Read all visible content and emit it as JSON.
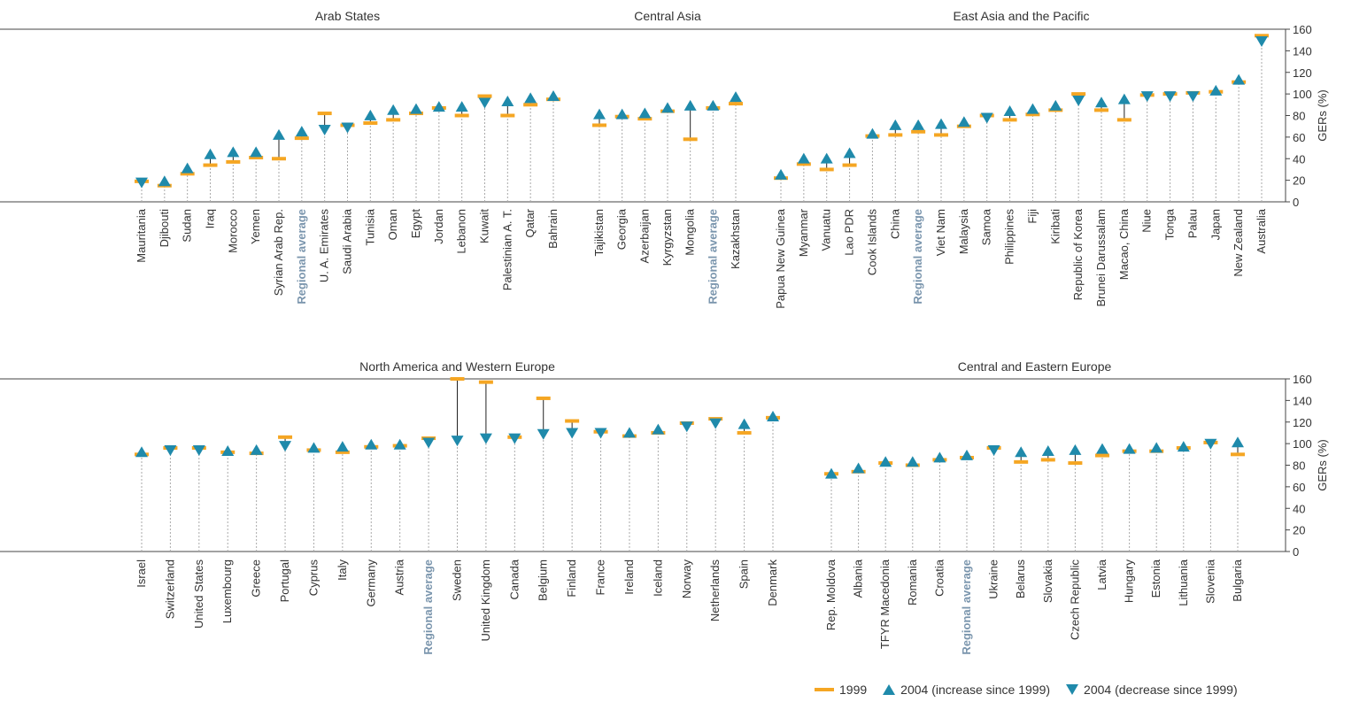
{
  "colors": {
    "y1999": "#f5a623",
    "y2004": "#1f8aab",
    "regional_label": "#7a95ad",
    "axis": "#444444",
    "dotted": "#aaaaaa"
  },
  "legend": {
    "item_1999": "1999",
    "item_increase": "2004 (increase since 1999)",
    "item_decrease": "2004 (decrease since 1999)"
  },
  "chart_data": [
    {
      "type": "scatter",
      "panel": "top",
      "ylabel": "GERs (%)",
      "ylim": [
        0,
        160
      ],
      "yticks": [
        0,
        20,
        40,
        60,
        80,
        100,
        120,
        140,
        160
      ],
      "groups": [
        {
          "title": "Arab States",
          "countries": [
            {
              "name": "Mauritania",
              "y1999": 19,
              "y2004": 18
            },
            {
              "name": "Djibouti",
              "y1999": 15,
              "y2004": 19
            },
            {
              "name": "Sudan",
              "y1999": 26,
              "y2004": 31
            },
            {
              "name": "Iraq",
              "y1999": 34,
              "y2004": 44
            },
            {
              "name": "Morocco",
              "y1999": 37,
              "y2004": 46
            },
            {
              "name": "Yemen",
              "y1999": 41,
              "y2004": 46
            },
            {
              "name": "Syrian Arab Rep.",
              "y1999": 40,
              "y2004": 62
            },
            {
              "name": "Regional average",
              "y1999": 59,
              "y2004": 65,
              "regional": true
            },
            {
              "name": "U. A. Emirates",
              "y1999": 82,
              "y2004": 67
            },
            {
              "name": "Saudi Arabia",
              "y1999": 71,
              "y2004": 69
            },
            {
              "name": "Tunisia",
              "y1999": 73,
              "y2004": 80
            },
            {
              "name": "Oman",
              "y1999": 76,
              "y2004": 85
            },
            {
              "name": "Egypt",
              "y1999": 82,
              "y2004": 86
            },
            {
              "name": "Jordan",
              "y1999": 87,
              "y2004": 88
            },
            {
              "name": "Lebanon",
              "y1999": 80,
              "y2004": 88
            },
            {
              "name": "Kuwait",
              "y1999": 98,
              "y2004": 92
            },
            {
              "name": "Palestinian A. T.",
              "y1999": 80,
              "y2004": 93
            },
            {
              "name": "Qatar",
              "y1999": 90,
              "y2004": 96
            },
            {
              "name": "Bahrain",
              "y1999": 95,
              "y2004": 98
            }
          ]
        },
        {
          "title": "Central Asia",
          "countries": [
            {
              "name": "Tajikistan",
              "y1999": 71,
              "y2004": 81
            },
            {
              "name": "Georgia",
              "y1999": 79,
              "y2004": 81
            },
            {
              "name": "Azerbaijan",
              "y1999": 77,
              "y2004": 82
            },
            {
              "name": "Kyrgyzstan",
              "y1999": 84,
              "y2004": 87
            },
            {
              "name": "Mongolia",
              "y1999": 58,
              "y2004": 89
            },
            {
              "name": "Regional average",
              "y1999": 87,
              "y2004": 89,
              "regional": true
            },
            {
              "name": "Kazakhstan",
              "y1999": 91,
              "y2004": 97
            }
          ]
        },
        {
          "title": "East Asia and the Pacific",
          "countries": [
            {
              "name": "Papua New Guinea",
              "y1999": 22,
              "y2004": 25
            },
            {
              "name": "Myanmar",
              "y1999": 35,
              "y2004": 40
            },
            {
              "name": "Vanuatu",
              "y1999": 30,
              "y2004": 40
            },
            {
              "name": "Lao PDR",
              "y1999": 34,
              "y2004": 45
            },
            {
              "name": "Cook Islands",
              "y1999": 61,
              "y2004": 63
            },
            {
              "name": "China",
              "y1999": 62,
              "y2004": 71
            },
            {
              "name": "Regional average",
              "y1999": 65,
              "y2004": 71,
              "regional": true
            },
            {
              "name": "Viet Nam",
              "y1999": 62,
              "y2004": 72
            },
            {
              "name": "Malaysia",
              "y1999": 70,
              "y2004": 74
            },
            {
              "name": "Samoa",
              "y1999": 80,
              "y2004": 78
            },
            {
              "name": "Philippines",
              "y1999": 76,
              "y2004": 84
            },
            {
              "name": "Fiji",
              "y1999": 81,
              "y2004": 86
            },
            {
              "name": "Kiribati",
              "y1999": 85,
              "y2004": 89
            },
            {
              "name": "Republic of Korea",
              "y1999": 100,
              "y2004": 94
            },
            {
              "name": "Brunei Darussalam",
              "y1999": 85,
              "y2004": 92
            },
            {
              "name": "Macao, China",
              "y1999": 76,
              "y2004": 95
            },
            {
              "name": "Niue",
              "y1999": 99,
              "y2004": 98
            },
            {
              "name": "Tonga",
              "y1999": 100,
              "y2004": 98
            },
            {
              "name": "Palau",
              "y1999": 101,
              "y2004": 98
            },
            {
              "name": "Japan",
              "y1999": 102,
              "y2004": 103
            },
            {
              "name": "New Zealand",
              "y1999": 111,
              "y2004": 113
            },
            {
              "name": "Australia",
              "y1999": 154,
              "y2004": 149
            }
          ]
        }
      ]
    },
    {
      "type": "scatter",
      "panel": "bottom",
      "ylabel": "GERs (%)",
      "ylim": [
        0,
        160
      ],
      "yticks": [
        0,
        20,
        40,
        60,
        80,
        100,
        120,
        140,
        160
      ],
      "groups": [
        {
          "title": "North America and Western Europe",
          "countries": [
            {
              "name": "Israel",
              "y1999": 90,
              "y2004": 92
            },
            {
              "name": "Switzerland",
              "y1999": 96,
              "y2004": 94
            },
            {
              "name": "United States",
              "y1999": 96,
              "y2004": 94
            },
            {
              "name": "Luxembourg",
              "y1999": 92,
              "y2004": 93
            },
            {
              "name": "Greece",
              "y1999": 91,
              "y2004": 94
            },
            {
              "name": "Portugal",
              "y1999": 106,
              "y2004": 98
            },
            {
              "name": "Cyprus",
              "y1999": 94,
              "y2004": 96
            },
            {
              "name": "Italy",
              "y1999": 92,
              "y2004": 97
            },
            {
              "name": "Germany",
              "y1999": 97,
              "y2004": 99
            },
            {
              "name": "Austria",
              "y1999": 98,
              "y2004": 99
            },
            {
              "name": "Regional average",
              "y1999": 105,
              "y2004": 101,
              "regional": true
            },
            {
              "name": "Sweden",
              "y1999": 160,
              "y2004": 103
            },
            {
              "name": "United Kingdom",
              "y1999": 157,
              "y2004": 105
            },
            {
              "name": "Canada",
              "y1999": 106,
              "y2004": 105
            },
            {
              "name": "Belgium",
              "y1999": 142,
              "y2004": 109
            },
            {
              "name": "Finland",
              "y1999": 121,
              "y2004": 110
            },
            {
              "name": "France",
              "y1999": 111,
              "y2004": 110
            },
            {
              "name": "Ireland",
              "y1999": 107,
              "y2004": 110
            },
            {
              "name": "Iceland",
              "y1999": 110,
              "y2004": 113
            },
            {
              "name": "Norway",
              "y1999": 119,
              "y2004": 116
            },
            {
              "name": "Netherlands",
              "y1999": 123,
              "y2004": 119
            },
            {
              "name": "Spain",
              "y1999": 110,
              "y2004": 118
            },
            {
              "name": "Denmark",
              "y1999": 124,
              "y2004": 125
            }
          ]
        },
        {
          "title": "Central and Eastern Europe",
          "countries": [
            {
              "name": "Rep. Moldova",
              "y1999": 72,
              "y2004": 72
            },
            {
              "name": "Albania",
              "y1999": 74,
              "y2004": 77
            },
            {
              "name": "TFYR Macedonia",
              "y1999": 82,
              "y2004": 83
            },
            {
              "name": "Romania",
              "y1999": 80,
              "y2004": 83
            },
            {
              "name": "Croatia",
              "y1999": 85,
              "y2004": 87
            },
            {
              "name": "Regional average",
              "y1999": 87,
              "y2004": 89,
              "regional": true
            },
            {
              "name": "Ukraine",
              "y1999": 96,
              "y2004": 94
            },
            {
              "name": "Belarus",
              "y1999": 83,
              "y2004": 92
            },
            {
              "name": "Slovakia",
              "y1999": 85,
              "y2004": 93
            },
            {
              "name": "Czech Republic",
              "y1999": 82,
              "y2004": 94
            },
            {
              "name": "Latvia",
              "y1999": 89,
              "y2004": 95
            },
            {
              "name": "Hungary",
              "y1999": 93,
              "y2004": 95
            },
            {
              "name": "Estonia",
              "y1999": 93,
              "y2004": 96
            },
            {
              "name": "Lithuania",
              "y1999": 96,
              "y2004": 97
            },
            {
              "name": "Slovenia",
              "y1999": 101,
              "y2004": 100
            },
            {
              "name": "Bulgaria",
              "y1999": 90,
              "y2004": 101
            }
          ]
        }
      ]
    }
  ]
}
